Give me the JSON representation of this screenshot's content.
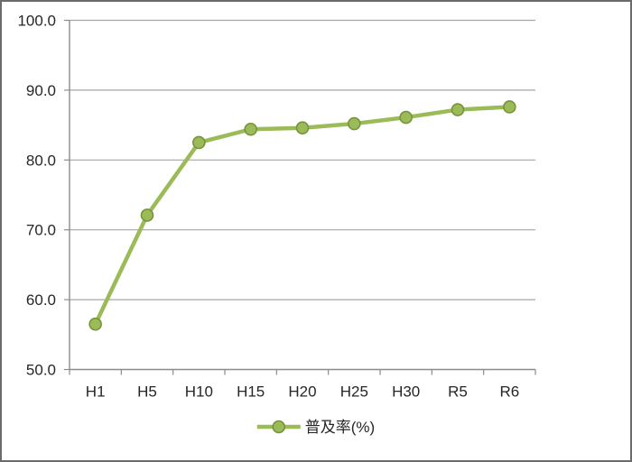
{
  "window": {
    "background": "#FFFFFF",
    "border_color": "#6B6B6B"
  },
  "chart_data": {
    "type": "line",
    "title": "",
    "xlabel": "",
    "ylabel": "",
    "categories": [
      "H1",
      "H5",
      "H10",
      "H15",
      "H20",
      "H25",
      "H30",
      "R5",
      "R6"
    ],
    "series": [
      {
        "name": "普及率(%)",
        "values": [
          56.5,
          72.1,
          82.5,
          84.4,
          84.6,
          85.2,
          86.1,
          87.2,
          87.6
        ]
      }
    ],
    "ylim": [
      50,
      100
    ],
    "yticks": [
      50,
      60,
      70,
      80,
      90,
      100
    ],
    "ytick_labels": [
      "50.0",
      "60.0",
      "70.0",
      "80.0",
      "90.0",
      "100.0"
    ],
    "grid": true,
    "legend_position": "bottom",
    "colors": {
      "line": "#9BBB59",
      "marker_fill": "#9BBB59",
      "marker_edge": "#77933C",
      "grid": "#A6A6A6",
      "axis": "#8C8C8C",
      "text": "#262626"
    }
  }
}
